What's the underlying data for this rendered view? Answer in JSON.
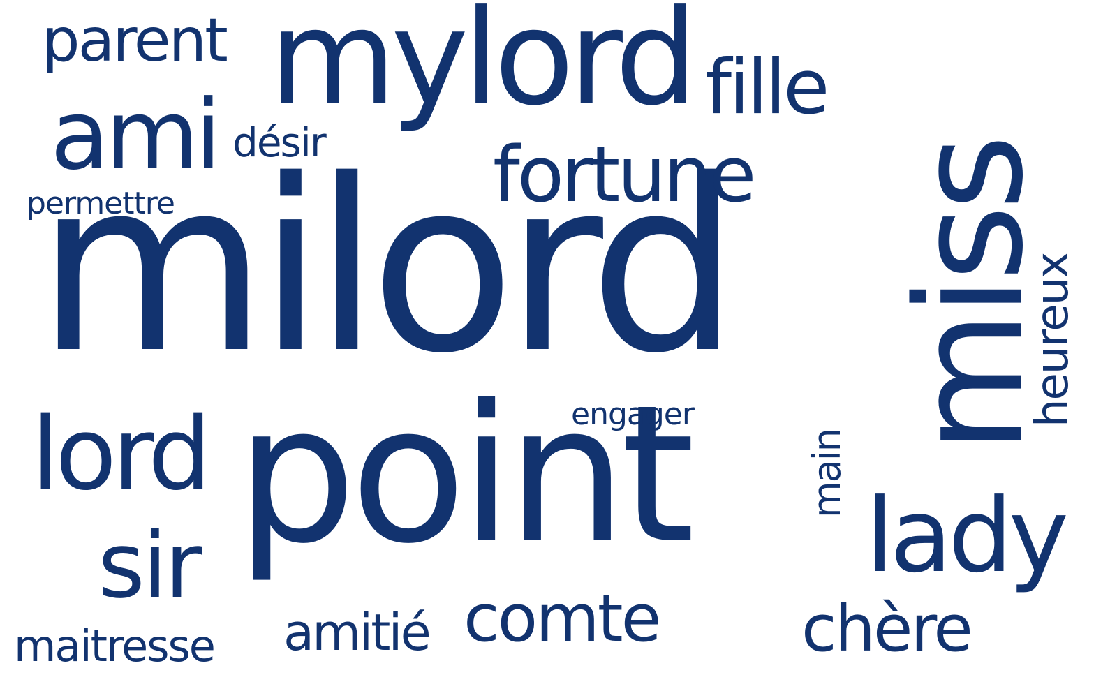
{
  "word_cloud": {
    "color": "#12336f",
    "words": [
      {
        "text": "milord",
        "rotated": false
      },
      {
        "text": "point",
        "rotated": false
      },
      {
        "text": "miss",
        "rotated": true
      },
      {
        "text": "mylord",
        "rotated": false
      },
      {
        "text": "fortune",
        "rotated": false
      },
      {
        "text": "ami",
        "rotated": false
      },
      {
        "text": "lord",
        "rotated": false
      },
      {
        "text": "lady",
        "rotated": false
      },
      {
        "text": "sir",
        "rotated": false
      },
      {
        "text": "comte",
        "rotated": false
      },
      {
        "text": "fille",
        "rotated": false
      },
      {
        "text": "parent",
        "rotated": false
      },
      {
        "text": "chère",
        "rotated": false
      },
      {
        "text": "amitié",
        "rotated": false
      },
      {
        "text": "maitresse",
        "rotated": false
      },
      {
        "text": "désir",
        "rotated": false
      },
      {
        "text": "heureux",
        "rotated": true
      },
      {
        "text": "main",
        "rotated": true
      },
      {
        "text": "permettre",
        "rotated": false
      },
      {
        "text": "engager",
        "rotated": false
      }
    ]
  }
}
